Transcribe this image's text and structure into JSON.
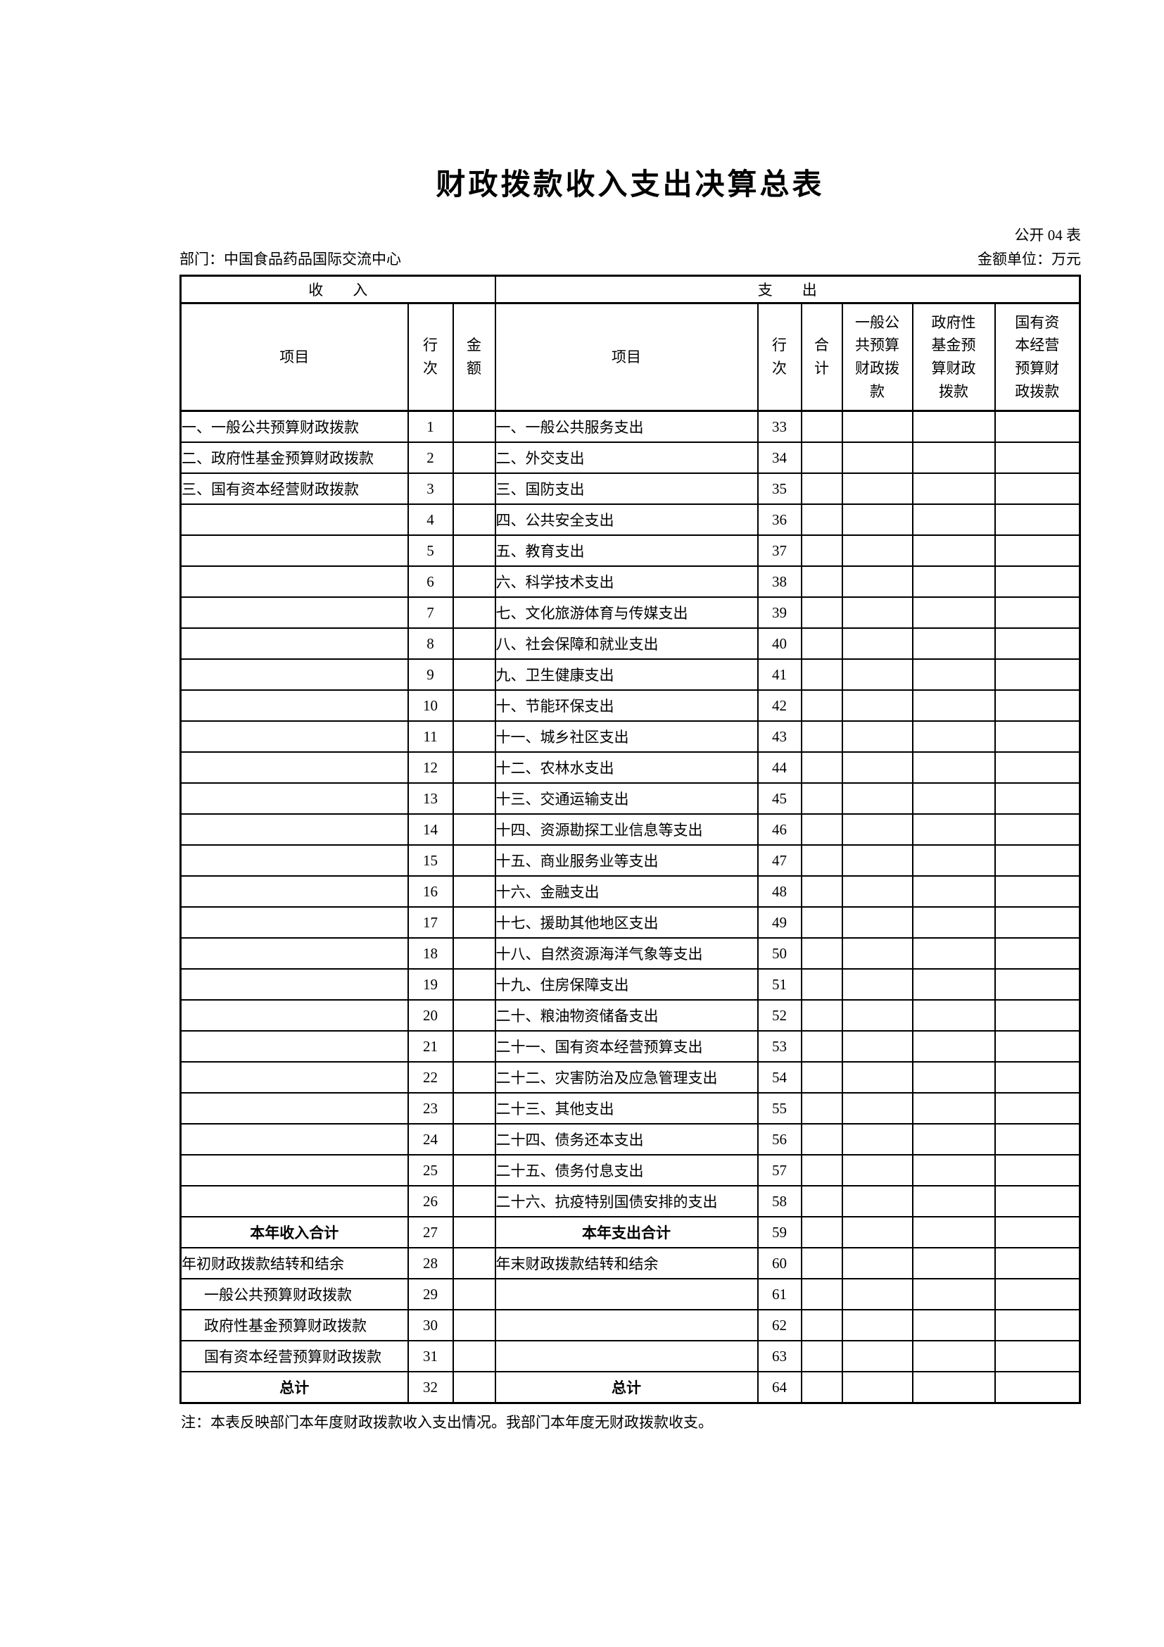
{
  "page": {
    "title": "财政拨款收入支出决算总表",
    "form_code": "公开 04 表",
    "department_label": "部门：中国食品药品国际交流中心",
    "unit_label": "金额单位：万元",
    "note": "注：本表反映部门本年度财政拨款收入支出情况。我部门本年度无财政拨款收支。"
  },
  "table": {
    "income_header": "收　　入",
    "expense_header": "支　　出",
    "columns": {
      "income_item": "项目",
      "income_line": "行\n次",
      "income_amount": "金\n额",
      "expense_item": "项目",
      "expense_line": "行\n次",
      "total": "合\n计",
      "general_budget": "一般公\n共预算\n财政拨\n款",
      "gov_fund": "政府性\n基金预\n算财政\n拨款",
      "state_capital": "国有资\n本经营\n预算财\n政拨款"
    },
    "rows": [
      [
        "一、一般公共预算财政拨款",
        "1",
        "",
        "一、一般公共服务支出",
        "33",
        "",
        "",
        "",
        "",
        "l",
        "l"
      ],
      [
        "二、政府性基金预算财政拨款",
        "2",
        "",
        "二、外交支出",
        "34",
        "",
        "",
        "",
        "",
        "l",
        "l"
      ],
      [
        "三、国有资本经营财政拨款",
        "3",
        "",
        "三、国防支出",
        "35",
        "",
        "",
        "",
        "",
        "l",
        "l"
      ],
      [
        "",
        "4",
        "",
        "四、公共安全支出",
        "36",
        "",
        "",
        "",
        "",
        "l",
        "l"
      ],
      [
        "",
        "5",
        "",
        "五、教育支出",
        "37",
        "",
        "",
        "",
        "",
        "l",
        "l"
      ],
      [
        "",
        "6",
        "",
        "六、科学技术支出",
        "38",
        "",
        "",
        "",
        "",
        "l",
        "l"
      ],
      [
        "",
        "7",
        "",
        "七、文化旅游体育与传媒支出",
        "39",
        "",
        "",
        "",
        "",
        "l",
        "l"
      ],
      [
        "",
        "8",
        "",
        "八、社会保障和就业支出",
        "40",
        "",
        "",
        "",
        "",
        "l",
        "l"
      ],
      [
        "",
        "9",
        "",
        "九、卫生健康支出",
        "41",
        "",
        "",
        "",
        "",
        "l",
        "l"
      ],
      [
        "",
        "10",
        "",
        "十、节能环保支出",
        "42",
        "",
        "",
        "",
        "",
        "l",
        "l"
      ],
      [
        "",
        "11",
        "",
        "十一、城乡社区支出",
        "43",
        "",
        "",
        "",
        "",
        "l",
        "l"
      ],
      [
        "",
        "12",
        "",
        "十二、农林水支出",
        "44",
        "",
        "",
        "",
        "",
        "l",
        "l"
      ],
      [
        "",
        "13",
        "",
        "十三、交通运输支出",
        "45",
        "",
        "",
        "",
        "",
        "l",
        "l"
      ],
      [
        "",
        "14",
        "",
        "十四、资源勘探工业信息等支出",
        "46",
        "",
        "",
        "",
        "",
        "l",
        "l"
      ],
      [
        "",
        "15",
        "",
        "十五、商业服务业等支出",
        "47",
        "",
        "",
        "",
        "",
        "l",
        "l"
      ],
      [
        "",
        "16",
        "",
        "十六、金融支出",
        "48",
        "",
        "",
        "",
        "",
        "l",
        "l"
      ],
      [
        "",
        "17",
        "",
        "十七、援助其他地区支出",
        "49",
        "",
        "",
        "",
        "",
        "l",
        "l"
      ],
      [
        "",
        "18",
        "",
        "十八、自然资源海洋气象等支出",
        "50",
        "",
        "",
        "",
        "",
        "l",
        "l"
      ],
      [
        "",
        "19",
        "",
        "十九、住房保障支出",
        "51",
        "",
        "",
        "",
        "",
        "l",
        "l"
      ],
      [
        "",
        "20",
        "",
        "二十、粮油物资储备支出",
        "52",
        "",
        "",
        "",
        "",
        "l",
        "l"
      ],
      [
        "",
        "21",
        "",
        "二十一、国有资本经营预算支出",
        "53",
        "",
        "",
        "",
        "",
        "l",
        "l"
      ],
      [
        "",
        "22",
        "",
        "二十二、灾害防治及应急管理支出",
        "54",
        "",
        "",
        "",
        "",
        "l",
        "l"
      ],
      [
        "",
        "23",
        "",
        "二十三、其他支出",
        "55",
        "",
        "",
        "",
        "",
        "l",
        "l"
      ],
      [
        "",
        "24",
        "",
        "二十四、债务还本支出",
        "56",
        "",
        "",
        "",
        "",
        "l",
        "l"
      ],
      [
        "",
        "25",
        "",
        "二十五、债务付息支出",
        "57",
        "",
        "",
        "",
        "",
        "l",
        "l"
      ],
      [
        "",
        "26",
        "",
        "二十六、抗疫特别国债安排的支出",
        "58",
        "",
        "",
        "",
        "",
        "l",
        "l"
      ],
      [
        "本年收入合计",
        "27",
        "",
        "本年支出合计",
        "59",
        "",
        "",
        "",
        "",
        "c",
        "c"
      ],
      [
        "年初财政拨款结转和结余",
        "28",
        "",
        "年末财政拨款结转和结余",
        "60",
        "",
        "",
        "",
        "",
        "l",
        "l"
      ],
      [
        "一般公共预算财政拨款",
        "29",
        "",
        "",
        "61",
        "",
        "",
        "",
        "",
        "i",
        "l"
      ],
      [
        "政府性基金预算财政拨款",
        "30",
        "",
        "",
        "62",
        "",
        "",
        "",
        "",
        "i",
        "l"
      ],
      [
        "国有资本经营预算财政拨款",
        "31",
        "",
        "",
        "63",
        "",
        "",
        "",
        "",
        "i",
        "l"
      ],
      [
        "总计",
        "32",
        "",
        "总计",
        "64",
        "",
        "",
        "",
        "",
        "c",
        "c"
      ]
    ]
  }
}
